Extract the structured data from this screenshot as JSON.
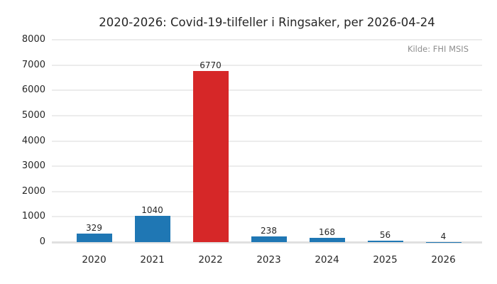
{
  "chart_data": {
    "type": "bar",
    "title": "2020-2026: Covid-19-tilfeller i Ringsaker, per 2026-04-24",
    "source_note": "Kilde: FHI MSIS",
    "categories": [
      "2020",
      "2021",
      "2022",
      "2023",
      "2024",
      "2025",
      "2026"
    ],
    "values": [
      329,
      1040,
      6770,
      238,
      168,
      56,
      4
    ],
    "bar_value_labels": [
      "329",
      "1040",
      "6770",
      "238",
      "168",
      "56",
      "4"
    ],
    "highlight_index": 2,
    "xlabel": "",
    "ylabel": "",
    "ylim": [
      0,
      8000
    ],
    "ytick_step": 1000,
    "ytick_labels": [
      "0",
      "1000",
      "2000",
      "3000",
      "4000",
      "5000",
      "6000",
      "7000",
      "8000"
    ],
    "grid": "horizontal",
    "legend": "none",
    "colors": {
      "bar_default": "#1f77b4",
      "bar_highlight": "#d62728",
      "gridline": "#ececec",
      "baseline": "#e0e0e0",
      "text": "#262626",
      "muted_text": "#8e8e8e",
      "background": "#ffffff"
    }
  }
}
